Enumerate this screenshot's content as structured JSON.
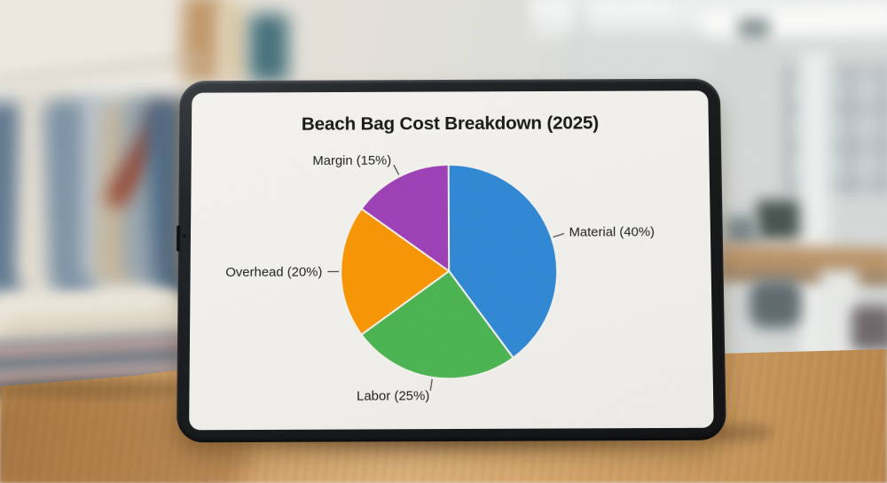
{
  "chart_data": {
    "type": "pie",
    "title": "Beach Bag Cost Breakdown (2025)",
    "slices": [
      {
        "label": "Material",
        "value": 40,
        "display": "Material (40%)",
        "color": "#2f87d4"
      },
      {
        "label": "Labor",
        "value": 25,
        "display": "Labor (25%)",
        "color": "#4ab350"
      },
      {
        "label": "Overhead",
        "value": 20,
        "display": "Overhead (20%)",
        "color": "#f89502"
      },
      {
        "label": "Margin",
        "value": 15,
        "display": "Margin (15%)",
        "color": "#9c3fb6"
      }
    ],
    "start_angle_deg": 0,
    "direction": "clockwise",
    "label_style": "outside-with-leader-lines",
    "slice_border_color": "#f5f3ee",
    "leader_line_color": "#4a4a4a",
    "label_color": "#1c1c1c",
    "legend": "none",
    "background_color": "#f1f0ec"
  }
}
